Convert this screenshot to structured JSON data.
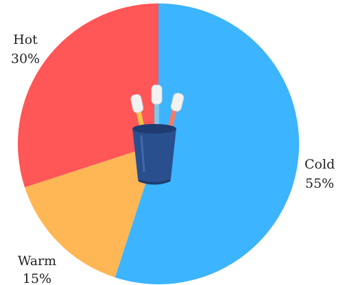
{
  "chart_data": {
    "type": "pie",
    "start_angle_deg": 0,
    "direction": "clockwise",
    "slices": [
      {
        "label": "Cold",
        "value": 55,
        "value_label": "55%",
        "color": "#3CB4FF"
      },
      {
        "label": "Warm",
        "value": 15,
        "value_label": "15%",
        "color": "#FFB755"
      },
      {
        "label": "Hot",
        "value": 30,
        "value_label": "30%",
        "color": "#FF5657"
      }
    ],
    "center_icon": "toothbrush-cup-icon"
  },
  "colors": {
    "cup": "#2A4F8E",
    "cup_dark": "#1F3C70",
    "brush_yellow": "#F3C44A",
    "brush_blue": "#7DC8EE",
    "brush_coral": "#F07C6B",
    "bristles": "#F2F2F2"
  }
}
